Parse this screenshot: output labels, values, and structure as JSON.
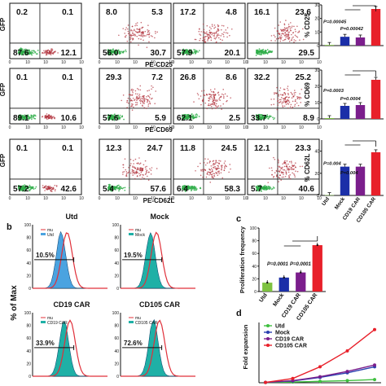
{
  "flow": {
    "y_axis_label": "GFP",
    "rows": [
      {
        "x_axis_label": "PE-CD25",
        "panels": [
          {
            "q": [
              "0.2",
              "0.1",
              "87.6",
              "12.1"
            ]
          },
          {
            "q": [
              "8.0",
              "5.3",
              "56.0",
              "30.7"
            ]
          },
          {
            "q": [
              "17.2",
              "4.8",
              "57.9",
              "20.1"
            ]
          },
          {
            "q": [
              "16.1",
              "23.6",
              "",
              "29.5"
            ]
          }
        ]
      },
      {
        "x_axis_label": "PE-CD69",
        "panels": [
          {
            "q": [
              "0.1",
              "0.1",
              "89.1",
              "10.6"
            ]
          },
          {
            "q": [
              "29.3",
              "7.2",
              "57.6",
              "5.9"
            ]
          },
          {
            "q": [
              "26.8",
              "8.6",
              "62.1",
              "2.5"
            ]
          },
          {
            "q": [
              "32.2",
              "25.2",
              "33.7",
              "8.9"
            ]
          }
        ]
      },
      {
        "x_axis_label": "PE-CD62L",
        "panels": [
          {
            "q": [
              "0.1",
              "0.1",
              "57.2",
              "42.6"
            ]
          },
          {
            "q": [
              "12.3",
              "24.7",
              "5.4",
              "57.6"
            ]
          },
          {
            "q": [
              "11.8",
              "24.5",
              "6.4",
              "58.3"
            ]
          },
          {
            "q": [
              "12.1",
              "23.3",
              "5.7",
              "40.6"
            ]
          }
        ]
      }
    ]
  },
  "bar_panels": {
    "categories": [
      "Utd",
      "Mock",
      "CD19 CAR",
      "CD105 CAR"
    ],
    "colors": [
      "#7ec241",
      "#1b2fa8",
      "#7b1e8c",
      "#e8202a"
    ],
    "charts": [
      {
        "ylabel": "% CD25",
        "yticks": [
          "0",
          "10",
          "20",
          "30"
        ],
        "ylim": [
          0,
          30
        ],
        "values": [
          0.5,
          6.5,
          6,
          27
        ],
        "pvals": [
          "P=0.00045",
          "P=0.00042"
        ]
      },
      {
        "ylabel": "% CD69",
        "yticks": [
          "0",
          "10",
          "20",
          "30"
        ],
        "ylim": [
          0,
          30
        ],
        "values": [
          0.5,
          8,
          8.5,
          24
        ],
        "pvals": [
          "P=0.0003",
          "P=0.0004"
        ]
      },
      {
        "ylabel": "% CD62L",
        "yticks": [
          "0",
          "20",
          "40"
        ],
        "ylim": [
          0,
          50
        ],
        "values": [
          0.3,
          26,
          26,
          39
        ],
        "pvals": [
          "P=0.004",
          "P=0.004"
        ]
      }
    ]
  },
  "panel_b": {
    "label": "b",
    "y_axis_label": "% of Max",
    "legend_mu": "mu",
    "histograms": [
      {
        "title": "Utd",
        "legend": "Utd",
        "pct": "10.5%",
        "fill": "#4aa3e0"
      },
      {
        "title": "Mock",
        "legend": "Mock",
        "pct": "19.5%",
        "fill": "#1fb0a6"
      },
      {
        "title": "CD19 CAR",
        "legend": "CD19 CAR",
        "pct": "33.9%",
        "fill": "#1fb0a6"
      },
      {
        "title": "CD105 CAR",
        "legend": "CD105 CAR",
        "pct": "72.6%",
        "fill": "#1fb0a6"
      }
    ]
  },
  "panel_c": {
    "label": "c",
    "ylabel": "Proliferation frequency",
    "yticks": [
      "0",
      "20",
      "40",
      "60",
      "80",
      "100"
    ],
    "ylim": [
      0,
      100
    ],
    "categories": [
      "Utd",
      "Mock",
      "CD19 CAR",
      "CD105 CAR"
    ],
    "values": [
      14,
      22,
      30,
      73
    ],
    "pvals": [
      "P=0.0001",
      "P=0.0001"
    ]
  },
  "panel_d": {
    "label": "d",
    "ylabel": "Fold expansion",
    "legend": [
      {
        "name": "Utd",
        "color": "#3fbf3f"
      },
      {
        "name": "Mock",
        "color": "#2a3fb0"
      },
      {
        "name": "CD19 CAR",
        "color": "#7b1e8c"
      },
      {
        "name": "CD105 CAR",
        "color": "#e8202a"
      }
    ]
  },
  "chart_data": [
    {
      "type": "bar",
      "ylabel": "% CD25",
      "categories": [
        "Utd",
        "Mock",
        "CD19 CAR",
        "CD105 CAR"
      ],
      "values": [
        0.5,
        6.5,
        6,
        27
      ],
      "ylim": [
        0,
        30
      ],
      "annotations": [
        "P=0.00045",
        "P=0.00042"
      ]
    },
    {
      "type": "bar",
      "ylabel": "% CD69",
      "categories": [
        "Utd",
        "Mock",
        "CD19 CAR",
        "CD105 CAR"
      ],
      "values": [
        0.5,
        8,
        8.5,
        24
      ],
      "ylim": [
        0,
        30
      ],
      "annotations": [
        "P=0.0003",
        "P=0.0004"
      ]
    },
    {
      "type": "bar",
      "ylabel": "% CD62L",
      "categories": [
        "Utd",
        "Mock",
        "CD19 CAR",
        "CD105 CAR"
      ],
      "values": [
        0.3,
        26,
        26,
        39
      ],
      "ylim": [
        0,
        50
      ],
      "annotations": [
        "P=0.004",
        "P=0.004"
      ]
    },
    {
      "type": "bar",
      "ylabel": "Proliferation frequency",
      "categories": [
        "Utd",
        "Mock",
        "CD19 CAR",
        "CD105 CAR"
      ],
      "values": [
        14,
        22,
        30,
        73
      ],
      "ylim": [
        0,
        100
      ],
      "annotations": [
        "P=0.0001",
        "P=0.0001"
      ]
    },
    {
      "type": "line",
      "ylabel": "Fold expansion",
      "series": [
        {
          "name": "Utd",
          "values": [
            1,
            2,
            4,
            6,
            9
          ]
        },
        {
          "name": "Mock",
          "values": [
            1,
            5,
            15,
            28,
            45
          ]
        },
        {
          "name": "CD19 CAR",
          "values": [
            1,
            6,
            17,
            32,
            50
          ]
        },
        {
          "name": "CD105 CAR",
          "values": [
            1,
            12,
            45,
            90,
            150
          ]
        }
      ]
    }
  ]
}
